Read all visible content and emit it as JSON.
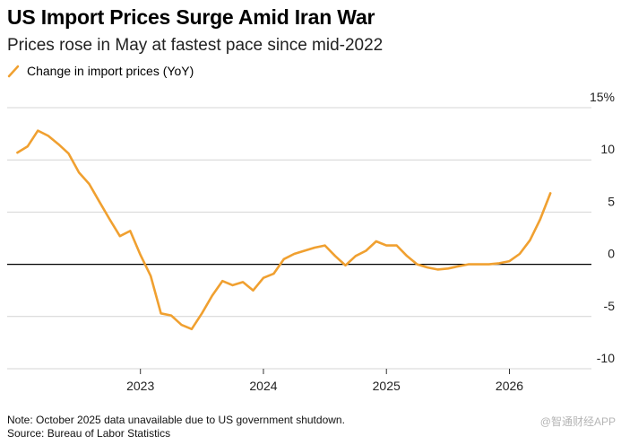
{
  "header": {
    "title": "US Import Prices Surge Amid Iran War",
    "subtitle": "Prices rose in May at fastest pace since mid-2022"
  },
  "legend": {
    "label": "Change in import prices (YoY)"
  },
  "footer": {
    "note": "Note: October 2025 data unavailable due to US government shutdown.",
    "source": "Source: Bureau of Labor Statistics",
    "watermark": "@智通财经APP"
  },
  "colors": {
    "series": "#F0A030",
    "grid": "#d4d4d4",
    "zero_line": "#000000"
  },
  "chart_data": {
    "type": "line",
    "title": "US Import Prices Surge Amid Iran War",
    "subtitle": "Prices rose in May at fastest pace since mid-2022",
    "xlabel": "",
    "ylabel": "",
    "x_ticks": [
      "2023",
      "2024",
      "2025",
      "2026"
    ],
    "y_ticks": [
      15,
      10,
      5,
      0,
      -5,
      -10
    ],
    "y_tick_labels": [
      "15%",
      "10",
      "5",
      "0",
      "-5",
      "-10"
    ],
    "ylim": [
      -10,
      15
    ],
    "xlim": [
      "2021-12",
      "2026-09"
    ],
    "grid": true,
    "legend_position": "top-left",
    "series": [
      {
        "name": "Change in import prices (YoY)",
        "color": "#F0A030",
        "points": [
          [
            "2022-01",
            10.7
          ],
          [
            "2022-02",
            11.3
          ],
          [
            "2022-03",
            12.8
          ],
          [
            "2022-04",
            12.3
          ],
          [
            "2022-05",
            11.5
          ],
          [
            "2022-06",
            10.6
          ],
          [
            "2022-07",
            8.8
          ],
          [
            "2022-08",
            7.7
          ],
          [
            "2022-09",
            6.0
          ],
          [
            "2022-10",
            4.3
          ],
          [
            "2022-11",
            2.7
          ],
          [
            "2022-12",
            3.2
          ],
          [
            "2023-01",
            0.9
          ],
          [
            "2023-02",
            -1.1
          ],
          [
            "2023-03",
            -4.7
          ],
          [
            "2023-04",
            -4.9
          ],
          [
            "2023-05",
            -5.8
          ],
          [
            "2023-06",
            -6.2
          ],
          [
            "2023-07",
            -4.7
          ],
          [
            "2023-08",
            -3.0
          ],
          [
            "2023-09",
            -1.6
          ],
          [
            "2023-10",
            -2.0
          ],
          [
            "2023-11",
            -1.7
          ],
          [
            "2023-12",
            -2.5
          ],
          [
            "2024-01",
            -1.3
          ],
          [
            "2024-02",
            -0.9
          ],
          [
            "2024-03",
            0.5
          ],
          [
            "2024-04",
            1.0
          ],
          [
            "2024-05",
            1.3
          ],
          [
            "2024-06",
            1.6
          ],
          [
            "2024-07",
            1.8
          ],
          [
            "2024-08",
            0.8
          ],
          [
            "2024-09",
            -0.1
          ],
          [
            "2024-10",
            0.8
          ],
          [
            "2024-11",
            1.3
          ],
          [
            "2024-12",
            2.2
          ],
          [
            "2025-01",
            1.8
          ],
          [
            "2025-02",
            1.8
          ],
          [
            "2025-03",
            0.8
          ],
          [
            "2025-04",
            0.0
          ],
          [
            "2025-05",
            -0.3
          ],
          [
            "2025-06",
            -0.5
          ],
          [
            "2025-07",
            -0.4
          ],
          [
            "2025-08",
            -0.2
          ],
          [
            "2025-09",
            0.0
          ],
          [
            "2025-11",
            0.0
          ],
          [
            "2025-12",
            0.1
          ],
          [
            "2026-01",
            0.3
          ],
          [
            "2026-02",
            1.0
          ],
          [
            "2026-03",
            2.3
          ],
          [
            "2026-04",
            4.3
          ],
          [
            "2026-05",
            6.8
          ]
        ]
      }
    ]
  }
}
